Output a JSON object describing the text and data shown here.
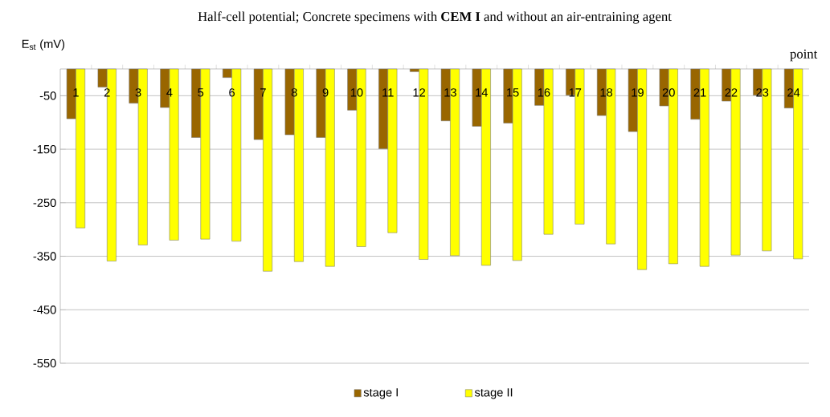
{
  "chart_data": {
    "type": "bar",
    "title": "Half-cell potential; Concrete specimens with **CEM I** and without an air-entraining agent",
    "xlabel": "point",
    "ylabel": "E$_{st}$ (mV)",
    "categories": [
      "1",
      "2",
      "3",
      "4",
      "5",
      "6",
      "7",
      "8",
      "9",
      "10",
      "11",
      "12",
      "13",
      "14",
      "15",
      "16",
      "17",
      "18",
      "19",
      "20",
      "21",
      "22",
      "23",
      "24"
    ],
    "series": [
      {
        "name": "stage I",
        "color": "#996600",
        "values": [
          -93,
          -34,
          -64,
          -72,
          -128,
          -16,
          -132,
          -123,
          -128,
          -77,
          -149,
          -5,
          -97,
          -107,
          -101,
          -68,
          -49,
          -87,
          -117,
          -69,
          -94,
          -60,
          -49,
          -73
        ]
      },
      {
        "name": "stage II",
        "color": "#ffff00",
        "values": [
          -297,
          -359,
          -329,
          -320,
          -318,
          -322,
          -378,
          -360,
          -369,
          -332,
          -306,
          -356,
          -349,
          -367,
          -358,
          -309,
          -290,
          -327,
          -375,
          -364,
          -369,
          -348,
          -340,
          -355
        ]
      }
    ],
    "ylim": [
      -550,
      0
    ],
    "yticks": [
      -50,
      -150,
      -250,
      -350,
      -450,
      -550
    ],
    "grid": "y",
    "legend": "bottom"
  }
}
